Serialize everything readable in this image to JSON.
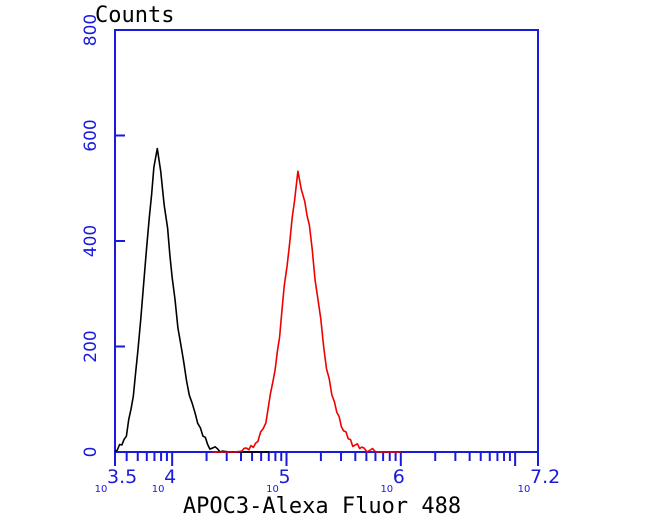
{
  "chart_data": {
    "type": "line",
    "ylabel": "Counts",
    "xlabel": "APOC3-Alexa Fluor 488",
    "xscale": "log",
    "xlim_log10": [
      3.5,
      7.2
    ],
    "ylim": [
      0,
      800
    ],
    "y_ticks": [
      {
        "value": 0,
        "label": "0"
      },
      {
        "value": 200,
        "label": "200"
      },
      {
        "value": 400,
        "label": "400"
      },
      {
        "value": 600,
        "label": "600"
      },
      {
        "value": 800,
        "label": "800"
      }
    ],
    "x_ticks": [
      {
        "value_log10": 3.5,
        "base": "10",
        "exp": "3.5"
      },
      {
        "value_log10": 4,
        "base": "10",
        "exp": "4"
      },
      {
        "value_log10": 5,
        "base": "10",
        "exp": "5"
      },
      {
        "value_log10": 6,
        "base": "10",
        "exp": "6"
      },
      {
        "value_log10": 7.2,
        "base": "10",
        "exp": "7.2"
      }
    ],
    "grid": false,
    "series": [
      {
        "color": "#000000",
        "x_log10": [
          3.5,
          3.6,
          3.66,
          3.7,
          3.75,
          3.8,
          3.84,
          3.87,
          3.9,
          3.93,
          3.96,
          4.0,
          4.05,
          4.1,
          4.15,
          4.2,
          4.27,
          4.33,
          4.4,
          4.5,
          4.6,
          4.85
        ],
        "y": [
          0,
          30,
          110,
          190,
          320,
          440,
          540,
          580,
          530,
          470,
          420,
          330,
          240,
          170,
          110,
          70,
          30,
          10,
          3,
          0,
          0,
          0
        ]
      },
      {
        "color": "#ee0000",
        "x_log10": [
          4.35,
          4.55,
          4.65,
          4.75,
          4.82,
          4.88,
          4.94,
          4.98,
          5.03,
          5.07,
          5.1,
          5.13,
          5.16,
          5.2,
          5.25,
          5.3,
          5.35,
          5.42,
          5.5,
          5.58,
          5.68,
          5.8,
          6.0
        ],
        "y": [
          0,
          0,
          3,
          20,
          60,
          130,
          220,
          310,
          400,
          480,
          530,
          500,
          470,
          430,
          330,
          250,
          160,
          90,
          40,
          15,
          5,
          0,
          0
        ]
      }
    ]
  }
}
